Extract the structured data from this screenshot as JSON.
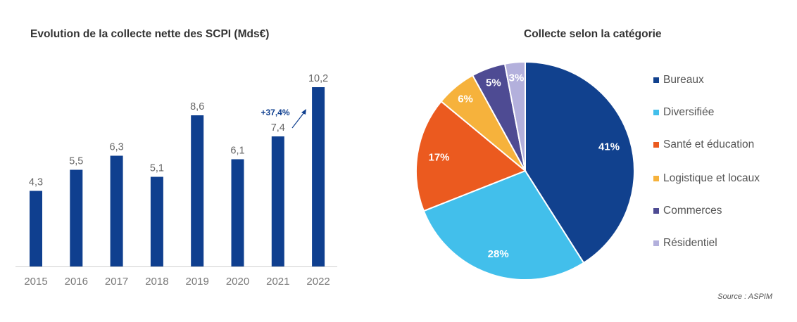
{
  "chart_data": [
    {
      "type": "bar",
      "title": "Evolution de la collecte nette des SCPI (Mds€)",
      "categories": [
        "2015",
        "2016",
        "2017",
        "2018",
        "2019",
        "2020",
        "2021",
        "2022"
      ],
      "values": [
        4.3,
        5.5,
        6.3,
        5.1,
        8.6,
        6.1,
        7.4,
        10.2
      ],
      "value_labels": [
        "4,3",
        "5,5",
        "6,3",
        "5,1",
        "8,6",
        "6,1",
        "7,4",
        "10,2"
      ],
      "annotation": "+37,4%",
      "ylim": [
        0,
        11
      ],
      "color": "#0f3f8f",
      "grid": false
    },
    {
      "type": "pie",
      "title": "Collecte selon la catégorie",
      "categories": [
        "Bureaux",
        "Diversifiée",
        "Santé et éducation",
        "Logistique et locaux",
        "Commerces",
        "Résidentiel"
      ],
      "values": [
        41,
        28,
        17,
        6,
        5,
        3
      ],
      "value_labels": [
        "41%",
        "28%",
        "17%",
        "6%",
        "5%",
        "3%"
      ],
      "colors": [
        "#11418e",
        "#42bfeb",
        "#eb5a1f",
        "#f6b23c",
        "#4e4b93",
        "#b3b0dc"
      ],
      "legend_position": "right"
    }
  ],
  "source": "Source : ASPIM"
}
